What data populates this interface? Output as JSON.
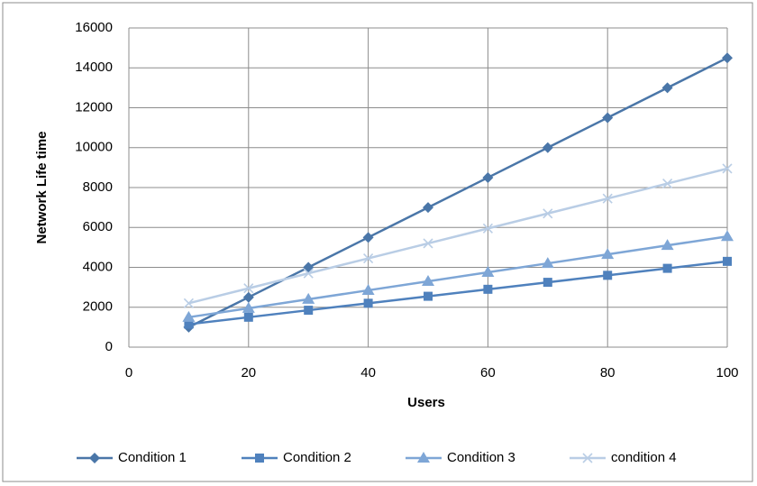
{
  "chart_data": {
    "type": "line",
    "x_label": "Users",
    "y_label": "Network Life time",
    "x": [
      10,
      20,
      30,
      40,
      50,
      60,
      70,
      80,
      90,
      100
    ],
    "series": [
      {
        "name": "Condition 1",
        "color": "#4a76a8",
        "marker": "diamond",
        "values": [
          1000,
          2500,
          4000,
          5500,
          7000,
          8500,
          10000,
          11500,
          13000,
          14500
        ]
      },
      {
        "name": "Condition 2",
        "color": "#4f81bd",
        "marker": "square",
        "values": [
          1150,
          1500,
          1850,
          2200,
          2550,
          2900,
          3250,
          3600,
          3950,
          4300
        ]
      },
      {
        "name": "Condition 3",
        "color": "#7ea6d6",
        "marker": "triangle",
        "values": [
          1500,
          1950,
          2400,
          2850,
          3300,
          3750,
          4200,
          4650,
          5100,
          5550
        ]
      },
      {
        "name": "condition 4",
        "color": "#b9cde5",
        "marker": "x",
        "values": [
          2200,
          2950,
          3700,
          4450,
          5200,
          5950,
          6700,
          7450,
          8200,
          8950
        ]
      }
    ],
    "xlim": [
      0,
      100
    ],
    "xticks": [
      0,
      20,
      40,
      60,
      80,
      100
    ],
    "ylim": [
      0,
      16000
    ],
    "yticks": [
      0,
      2000,
      4000,
      6000,
      8000,
      10000,
      12000,
      14000,
      16000
    ],
    "grid": true,
    "legend": "bottom"
  }
}
